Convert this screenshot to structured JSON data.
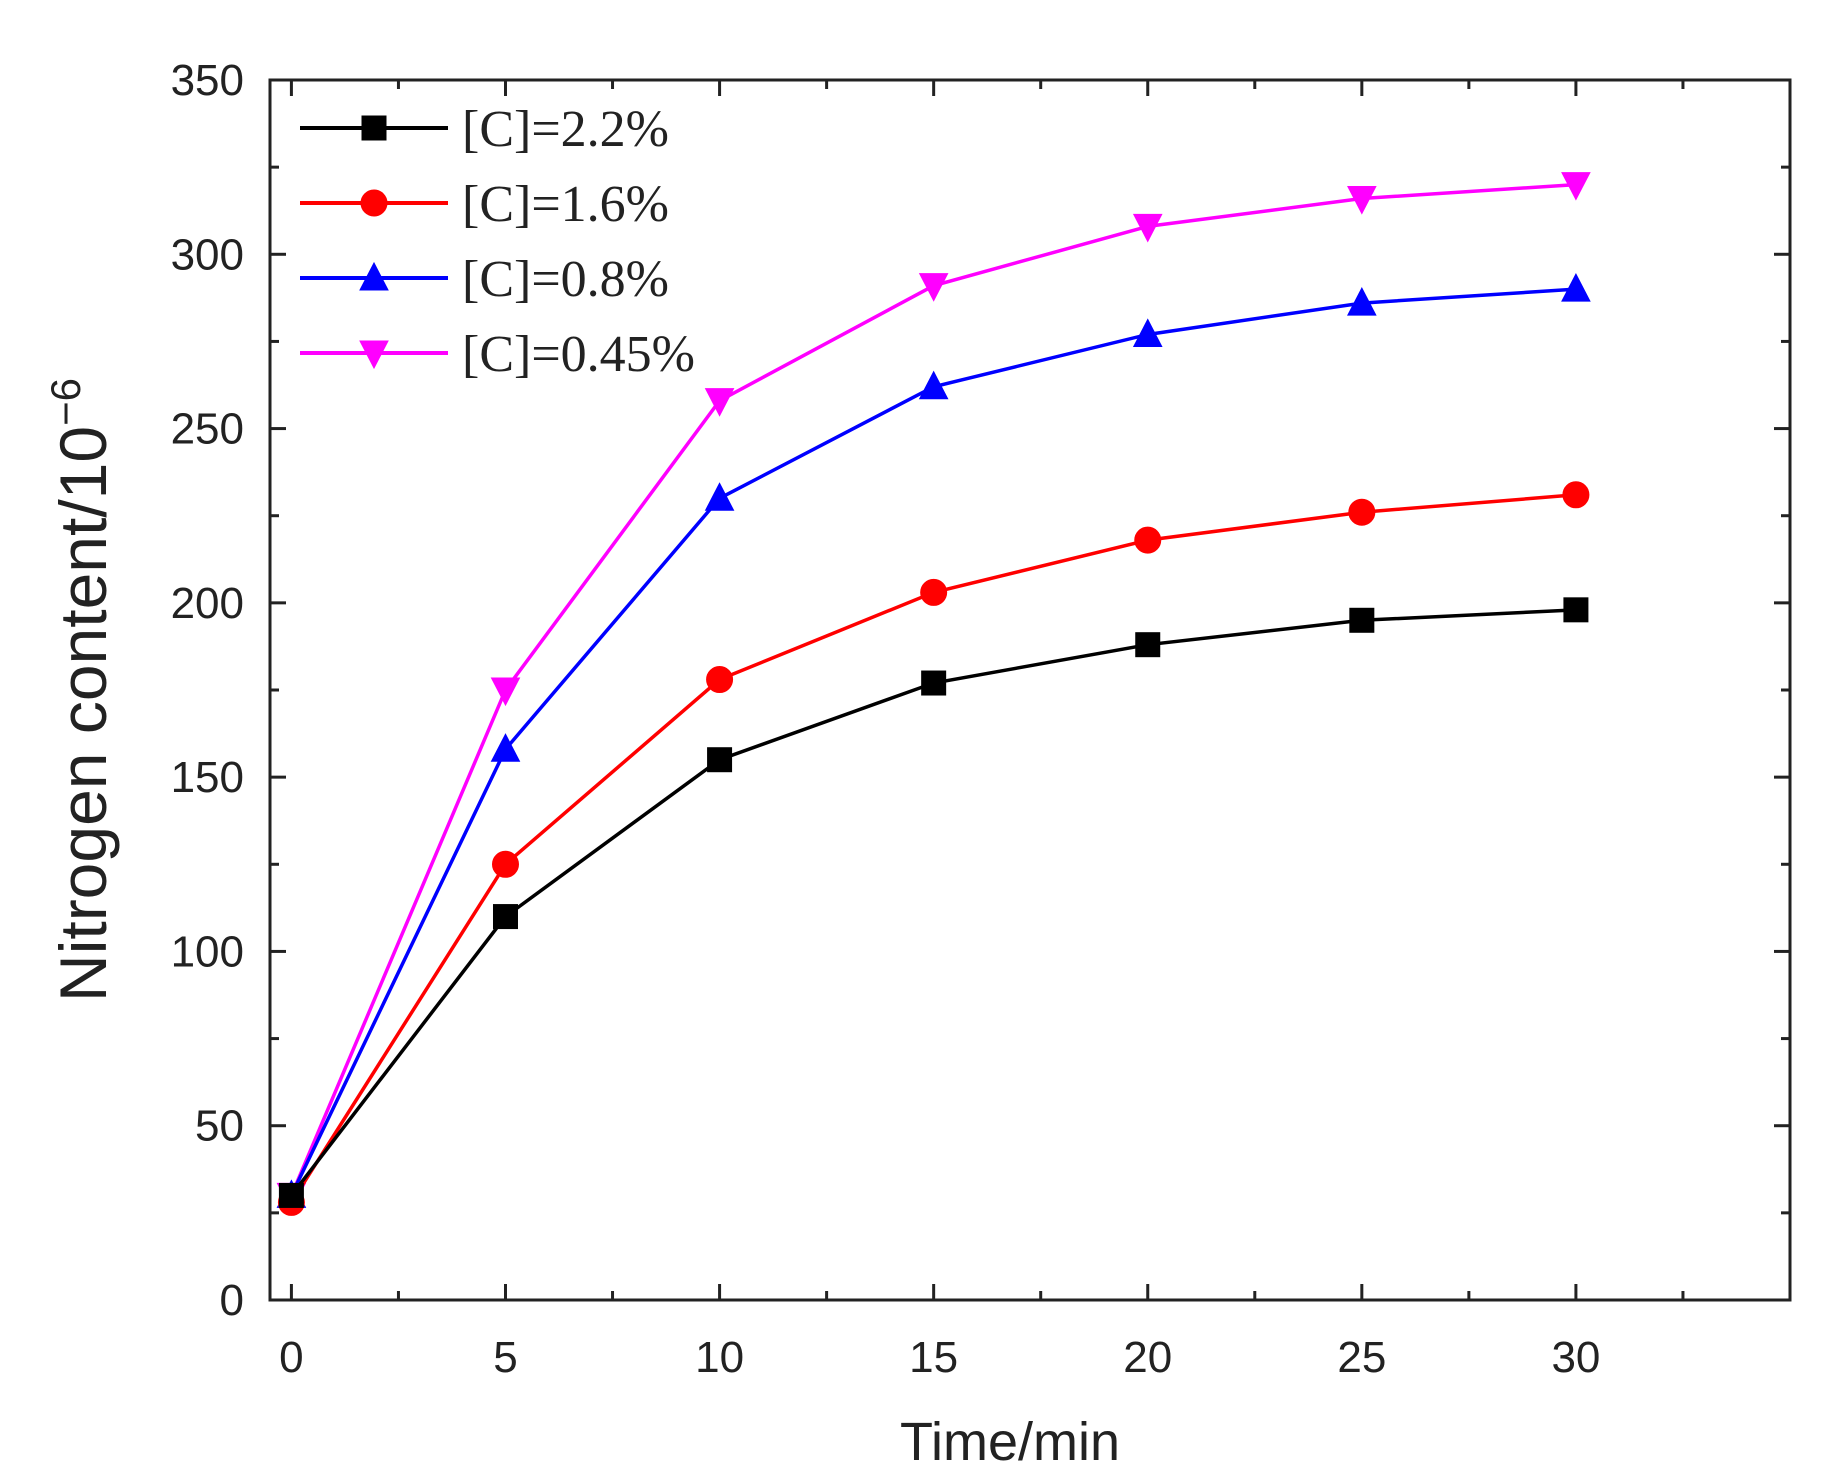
{
  "chart_data": {
    "type": "line",
    "title": "",
    "xlabel": "Time/min",
    "ylabel": "Nitrogen content/10",
    "ylabel_exponent": "−6",
    "xlim": [
      -0.5,
      35
    ],
    "ylim": [
      0,
      350
    ],
    "xticks": [
      "0",
      "5",
      "10",
      "15",
      "20",
      "25",
      "30"
    ],
    "yticks": [
      "0",
      "50",
      "100",
      "150",
      "200",
      "250",
      "300",
      "350"
    ],
    "x": [
      0,
      5,
      10,
      15,
      20,
      25,
      30
    ],
    "legend_position": "top-left",
    "series": [
      {
        "name": "[C]=2.2%",
        "color": "#000000",
        "marker": "square",
        "values": [
          30,
          110,
          155,
          177,
          188,
          195,
          198
        ]
      },
      {
        "name": "[C]=1.6%",
        "color": "#ff0000",
        "marker": "circle",
        "values": [
          28,
          125,
          178,
          203,
          218,
          226,
          231
        ]
      },
      {
        "name": "[C]=0.8%",
        "color": "#0000ff",
        "marker": "triangle-up",
        "values": [
          30,
          158,
          230,
          262,
          277,
          286,
          290
        ]
      },
      {
        "name": "[C]=0.45%",
        "color": "#ff00ff",
        "marker": "triangle-down",
        "values": [
          30,
          175,
          258,
          291,
          308,
          316,
          320
        ]
      }
    ]
  }
}
